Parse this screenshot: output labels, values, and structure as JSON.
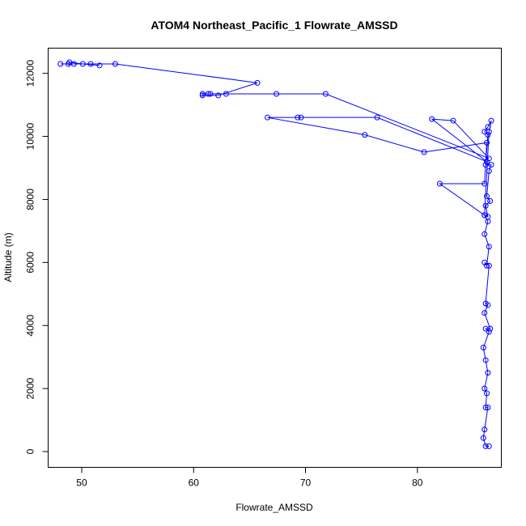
{
  "chart_data": {
    "type": "line",
    "title": "ATOM4 Northeast_Pacific_1 Flowrate_AMSSD",
    "xlabel": "Flowrate_AMSSD",
    "ylabel": "Altitude (m)",
    "xlim": [
      47.0,
      87.5
    ],
    "ylim": [
      -500,
      12800
    ],
    "x_ticks": [
      50,
      60,
      70,
      80
    ],
    "y_ticks": [
      0,
      2000,
      4000,
      6000,
      8000,
      10000,
      12000
    ],
    "x_tick_labels": [
      "50",
      "60",
      "70",
      "80"
    ],
    "y_tick_labels": [
      "0",
      "2000",
      "4000",
      "6000",
      "8000",
      "10000",
      "12000"
    ],
    "grid": false,
    "series": [
      {
        "color": "#0000ff",
        "x": [
          86.4,
          86.1,
          85.9,
          86.0,
          86.3,
          86.1,
          86.2,
          86.0,
          86.3,
          86.1,
          85.9,
          86.4,
          86.1,
          86.5,
          86.0,
          86.3,
          86.1,
          86.4,
          86.0,
          86.2,
          86.4,
          86.0,
          86.3,
          86.0,
          86.3,
          86.1,
          86.5,
          86.2,
          86.4,
          86.6,
          86.1,
          86.3,
          86.0,
          86.3,
          86.6,
          86.4,
          86.0,
          82.0,
          86.0,
          86.2,
          80.6,
          75.3,
          66.6,
          69.6,
          69.3,
          76.4,
          86.2,
          81.3,
          83.2,
          86.4,
          71.8,
          67.4,
          62.9,
          61.5,
          61.3,
          60.8,
          60.8,
          62.2,
          65.7,
          53.0,
          50.8,
          49.3,
          48.1,
          48.8,
          48.9,
          50.1,
          51.6
        ],
        "y": [
          170,
          170,
          430,
          700,
          1400,
          1400,
          1850,
          2000,
          2500,
          2900,
          3300,
          3800,
          3900,
          3900,
          4400,
          4650,
          4700,
          5900,
          6000,
          5900,
          6500,
          6900,
          7300,
          7500,
          7450,
          7800,
          7950,
          8100,
          8900,
          9100,
          9100,
          10050,
          10150,
          10300,
          10500,
          10150,
          7500,
          8500,
          8500,
          9800,
          9500,
          10050,
          10600,
          10600,
          10600,
          10600,
          9200,
          10550,
          10500,
          9300,
          11350,
          11350,
          11350,
          11350,
          11350,
          11350,
          11300,
          11300,
          11700,
          12300,
          12300,
          12300,
          12300,
          12300,
          12350,
          12300,
          12250
        ]
      }
    ]
  }
}
